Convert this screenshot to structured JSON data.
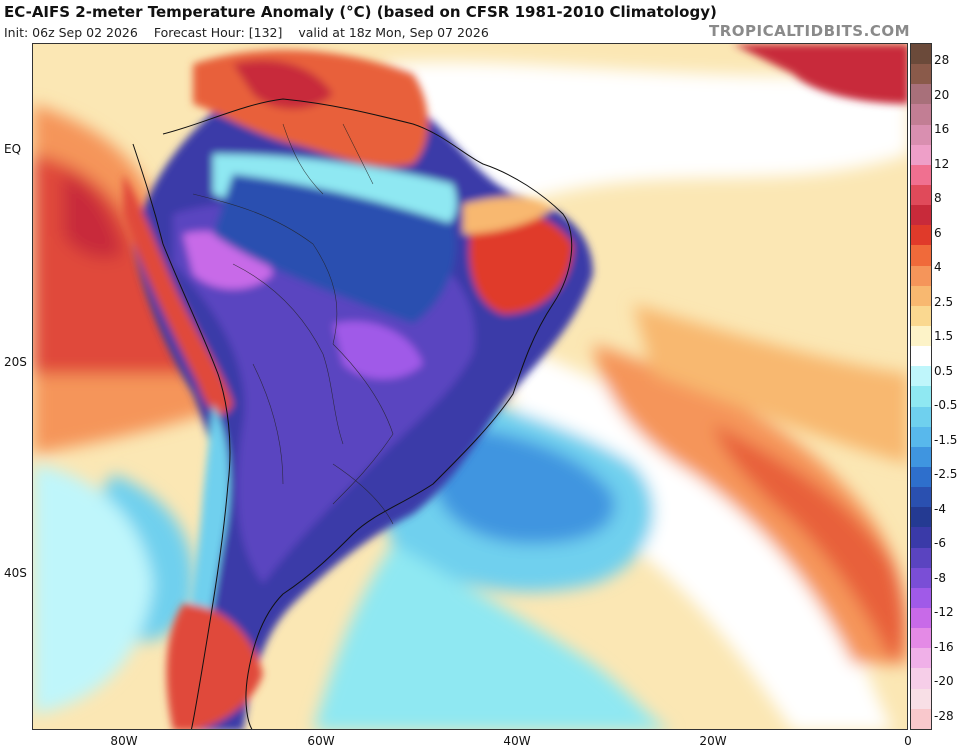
{
  "header": {
    "title": "EC-AIFS 2-meter Temperature Anomaly (°C) (based on CFSR 1981-2010 Climatology)",
    "init": "Init: 06z Sep 02 2026",
    "forecast_hour": "Forecast Hour: [132]",
    "valid": "valid at 18z Mon, Sep 07 2026",
    "brand": "TROPICALTIDBITS.COM"
  },
  "axes": {
    "lat_labels": [
      "EQ",
      "20S",
      "40S"
    ],
    "lon_labels": [
      "80W",
      "60W",
      "40W",
      "20W",
      "0"
    ]
  },
  "colorbar": {
    "labels": [
      "28",
      "20",
      "16",
      "12",
      "8",
      "6",
      "4",
      "2.5",
      "1.5",
      "0.5",
      "-0.5",
      "-1.5",
      "-2.5",
      "-4",
      "-6",
      "-8",
      "-12",
      "-16",
      "-20",
      "-28"
    ],
    "colors": [
      "#6b4a3a",
      "#8a5a4a",
      "#a8707a",
      "#c27e94",
      "#d98fb0",
      "#ee9fc8",
      "#f07090",
      "#e04a5a",
      "#c82a3a",
      "#e03a2a",
      "#f06a3a",
      "#f5955a",
      "#f8b870",
      "#fad890",
      "#fdf3c8",
      "#ffffff",
      "#bff6fb",
      "#8fe8f2",
      "#6fd0ee",
      "#58b8ec",
      "#3f95e0",
      "#2e6fcc",
      "#2a50b0",
      "#243a92",
      "#3a3aa8",
      "#5a44c0",
      "#7a4ed6",
      "#a05ae8",
      "#c86ae8",
      "#e48ae6",
      "#f0b0e8",
      "#f6cee8",
      "#f8dfe6",
      "#f9c8cc"
    ]
  }
}
